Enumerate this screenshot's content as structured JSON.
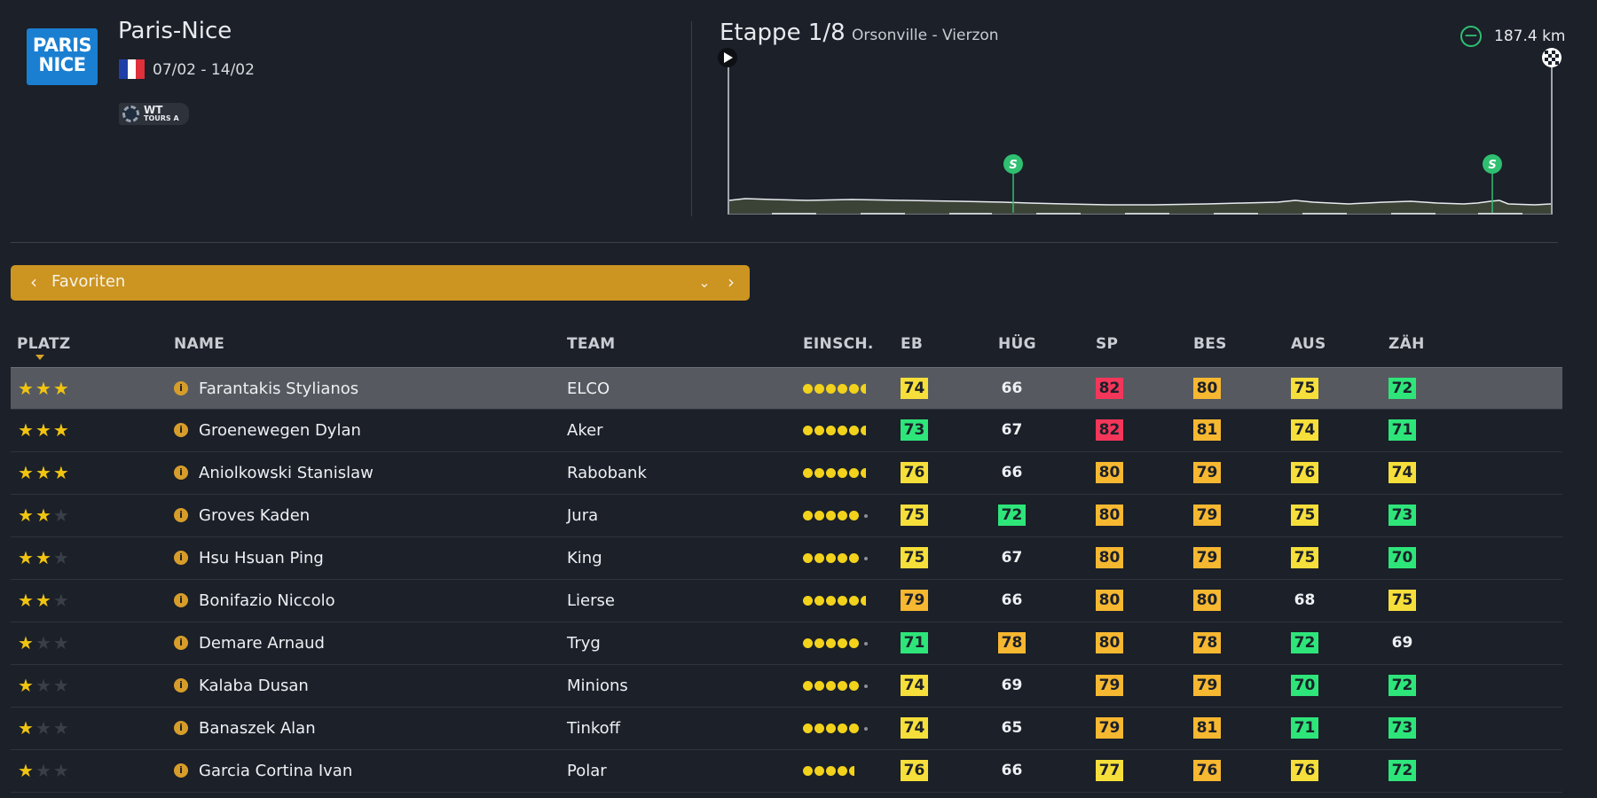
{
  "race": {
    "logo_line1": "PARIS",
    "logo_line2": "NICE",
    "title": "Paris-Nice",
    "dates": "07/02 - 14/02",
    "flag": [
      "#1f3fa8",
      "#ffffff",
      "#e0303a"
    ],
    "badge_line1": "WT",
    "badge_line2": "TOURS A"
  },
  "stage": {
    "title": "Etappe 1/8",
    "route": "Orsonville - Vierzon",
    "distance": "187.4 km",
    "sprint_label": "S"
  },
  "filter": {
    "selected": "Favoriten"
  },
  "table": {
    "headers": {
      "platz": "PLATZ",
      "name": "NAME",
      "team": "TEAM",
      "einsch": "EINSCH.",
      "eb": "EB",
      "hug": "HÜG",
      "sp": "SP",
      "bes": "BES",
      "aus": "AUS",
      "zah": "ZÄH"
    },
    "colors": {
      "green": "#2ee57a",
      "yellow": "#f6df3a",
      "orange": "#f6b731",
      "red": "#f3365a"
    },
    "rows": [
      {
        "stars": 3,
        "name": "Farantakis Stylianos",
        "team": "ELCO",
        "form": 5.5,
        "stats": [
          [
            74,
            "yellow"
          ],
          [
            66,
            "none"
          ],
          [
            82,
            "red"
          ],
          [
            80,
            "orange"
          ],
          [
            75,
            "yellow"
          ],
          [
            72,
            "green"
          ]
        ]
      },
      {
        "stars": 3,
        "name": "Groenewegen Dylan",
        "team": "Aker",
        "form": 5.5,
        "stats": [
          [
            73,
            "green"
          ],
          [
            67,
            "none"
          ],
          [
            82,
            "red"
          ],
          [
            81,
            "orange"
          ],
          [
            74,
            "yellow"
          ],
          [
            71,
            "green"
          ]
        ]
      },
      {
        "stars": 3,
        "name": "Aniolkowski Stanislaw",
        "team": "Rabobank",
        "form": 5.5,
        "stats": [
          [
            76,
            "yellow"
          ],
          [
            66,
            "none"
          ],
          [
            80,
            "orange"
          ],
          [
            79,
            "orange"
          ],
          [
            76,
            "yellow"
          ],
          [
            74,
            "yellow"
          ]
        ]
      },
      {
        "stars": 2,
        "name": "Groves Kaden",
        "team": "Jura",
        "form": 5,
        "stats": [
          [
            75,
            "yellow"
          ],
          [
            72,
            "green"
          ],
          [
            80,
            "orange"
          ],
          [
            79,
            "orange"
          ],
          [
            75,
            "yellow"
          ],
          [
            73,
            "green"
          ]
        ]
      },
      {
        "stars": 2,
        "name": "Hsu Hsuan Ping",
        "team": "King",
        "form": 5,
        "stats": [
          [
            75,
            "yellow"
          ],
          [
            67,
            "none"
          ],
          [
            80,
            "orange"
          ],
          [
            79,
            "orange"
          ],
          [
            75,
            "yellow"
          ],
          [
            70,
            "green"
          ]
        ]
      },
      {
        "stars": 2,
        "name": "Bonifazio Niccolo",
        "team": "Lierse",
        "form": 5.5,
        "stats": [
          [
            79,
            "orange"
          ],
          [
            66,
            "none"
          ],
          [
            80,
            "orange"
          ],
          [
            80,
            "orange"
          ],
          [
            68,
            "none"
          ],
          [
            75,
            "yellow"
          ]
        ]
      },
      {
        "stars": 1,
        "name": "Demare Arnaud",
        "team": "Tryg",
        "form": 5,
        "stats": [
          [
            71,
            "green"
          ],
          [
            78,
            "orange"
          ],
          [
            80,
            "orange"
          ],
          [
            78,
            "orange"
          ],
          [
            72,
            "green"
          ],
          [
            69,
            "none"
          ]
        ]
      },
      {
        "stars": 1,
        "name": "Kalaba Dusan",
        "team": "Minions",
        "form": 5,
        "stats": [
          [
            74,
            "yellow"
          ],
          [
            69,
            "none"
          ],
          [
            79,
            "orange"
          ],
          [
            79,
            "orange"
          ],
          [
            70,
            "green"
          ],
          [
            72,
            "green"
          ]
        ]
      },
      {
        "stars": 1,
        "name": "Banaszek Alan",
        "team": "Tinkoff",
        "form": 5,
        "stats": [
          [
            74,
            "yellow"
          ],
          [
            65,
            "none"
          ],
          [
            79,
            "orange"
          ],
          [
            81,
            "orange"
          ],
          [
            71,
            "green"
          ],
          [
            73,
            "green"
          ]
        ]
      },
      {
        "stars": 1,
        "name": "Garcia Cortina Ivan",
        "team": "Polar",
        "form": 4.5,
        "stats": [
          [
            76,
            "yellow"
          ],
          [
            66,
            "none"
          ],
          [
            77,
            "yellow"
          ],
          [
            76,
            "orange"
          ],
          [
            76,
            "yellow"
          ],
          [
            72,
            "green"
          ]
        ]
      }
    ]
  }
}
